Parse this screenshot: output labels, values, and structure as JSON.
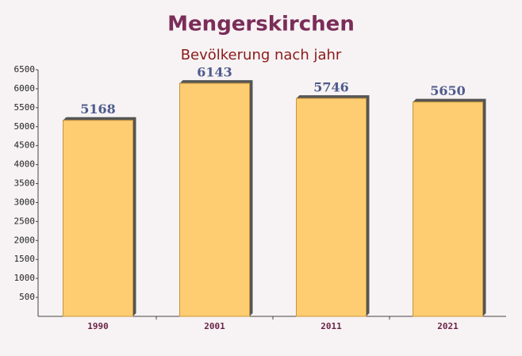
{
  "chart_data": {
    "type": "bar",
    "title": "Mengerskirchen",
    "subtitle": "Bevölkerung nach jahr",
    "categories": [
      "1990",
      "2001",
      "2011",
      "2021"
    ],
    "values": [
      5168,
      6143,
      5746,
      5650
    ],
    "color": "#ffc55a",
    "ylim": [
      0,
      6500
    ],
    "yticks": [
      500,
      1000,
      1500,
      2000,
      2500,
      3000,
      3500,
      4000,
      4500,
      5000,
      5500,
      6000,
      6500
    ]
  }
}
